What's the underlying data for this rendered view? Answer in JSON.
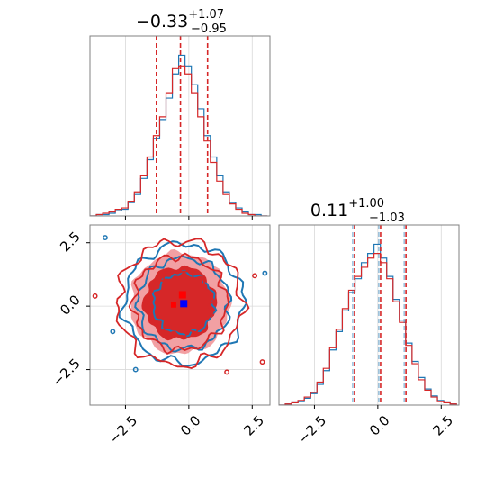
{
  "chart_data": [
    {
      "type": "histogram",
      "panel": "marginal-x",
      "title": {
        "main": "−0.33",
        "sup": "+1.07",
        "sub": "−0.95"
      },
      "xlim": [
        -3.9,
        3.2
      ],
      "x_ticks": [
        -2.5,
        0.0,
        2.5
      ],
      "bin_edges": [
        -3.9,
        -3.65,
        -3.4,
        -3.15,
        -2.9,
        -2.65,
        -2.4,
        -2.15,
        -1.9,
        -1.65,
        -1.4,
        -1.15,
        -0.9,
        -0.65,
        -0.4,
        -0.15,
        0.1,
        0.35,
        0.6,
        0.85,
        1.1,
        1.35,
        1.6,
        1.85,
        2.1,
        2.35,
        2.6,
        2.85,
        3.1
      ],
      "series": [
        {
          "color": "#1f77b4",
          "values": [
            0,
            1,
            1,
            2,
            4,
            5,
            10,
            16,
            28,
            42,
            58,
            72,
            88,
            106,
            120,
            112,
            98,
            80,
            60,
            44,
            30,
            18,
            10,
            6,
            3,
            1,
            1,
            0
          ]
        },
        {
          "color": "#d62728",
          "values": [
            0,
            1,
            2,
            3,
            5,
            6,
            11,
            18,
            30,
            44,
            60,
            74,
            92,
            110,
            112,
            106,
            92,
            74,
            56,
            40,
            26,
            16,
            9,
            5,
            2,
            1,
            0,
            0
          ]
        }
      ],
      "quantile_lines": [
        -1.28,
        -0.33,
        0.74
      ],
      "quantile_color": "#d62728"
    },
    {
      "type": "contour",
      "panel": "joint",
      "xlim": [
        -3.9,
        3.2
      ],
      "ylim": [
        -3.9,
        3.2
      ],
      "x_ticks": [
        -2.5,
        0.0,
        2.5
      ],
      "y_ticks": [
        -2.5,
        0.0,
        2.5
      ],
      "x_tick_labels": [
        "−2.5",
        "0.0",
        "2.5"
      ],
      "y_tick_labels": [
        "−2.5",
        "0.0",
        "2.5"
      ],
      "series": [
        {
          "color": "#1f77b4",
          "center": [
            -0.2,
            0.1
          ],
          "spread": [
            1.0,
            1.0
          ],
          "peak": [
            -0.2,
            0.1
          ]
        },
        {
          "color": "#d62728",
          "center": [
            -0.35,
            0.12
          ],
          "spread": [
            0.95,
            1.0
          ],
          "peak": [
            -0.25,
            0.45
          ]
        }
      ],
      "fill_colors": [
        "#f2a0a3",
        "#d62728"
      ]
    },
    {
      "type": "histogram",
      "panel": "marginal-y",
      "title": {
        "main": "0.11",
        "sup": "+1.00",
        "sub": "−1.03"
      },
      "xlim": [
        -3.9,
        3.2
      ],
      "x_ticks": [
        -2.5,
        0.0,
        2.5
      ],
      "x_tick_labels": [
        "−2.5",
        "0.0",
        "2.5"
      ],
      "bin_edges": [
        -3.9,
        -3.65,
        -3.4,
        -3.15,
        -2.9,
        -2.65,
        -2.4,
        -2.15,
        -1.9,
        -1.65,
        -1.4,
        -1.15,
        -0.9,
        -0.65,
        -0.4,
        -0.15,
        0.1,
        0.35,
        0.6,
        0.85,
        1.1,
        1.35,
        1.6,
        1.85,
        2.1,
        2.35,
        2.6,
        2.85,
        3.1
      ],
      "series": [
        {
          "color": "#1f77b4",
          "values": [
            0,
            1,
            2,
            3,
            6,
            10,
            18,
            30,
            48,
            64,
            82,
            98,
            110,
            124,
            132,
            140,
            128,
            112,
            92,
            74,
            54,
            38,
            24,
            14,
            8,
            4,
            2,
            1
          ]
        },
        {
          "color": "#d62728",
          "values": [
            0,
            1,
            2,
            4,
            7,
            11,
            20,
            32,
            50,
            66,
            84,
            100,
            112,
            120,
            128,
            132,
            124,
            110,
            90,
            72,
            52,
            36,
            22,
            13,
            7,
            3,
            2,
            1
          ]
        }
      ],
      "quantile_lines": [
        -0.92,
        0.11,
        1.11
      ],
      "quantile_color": "#d62728"
    }
  ]
}
